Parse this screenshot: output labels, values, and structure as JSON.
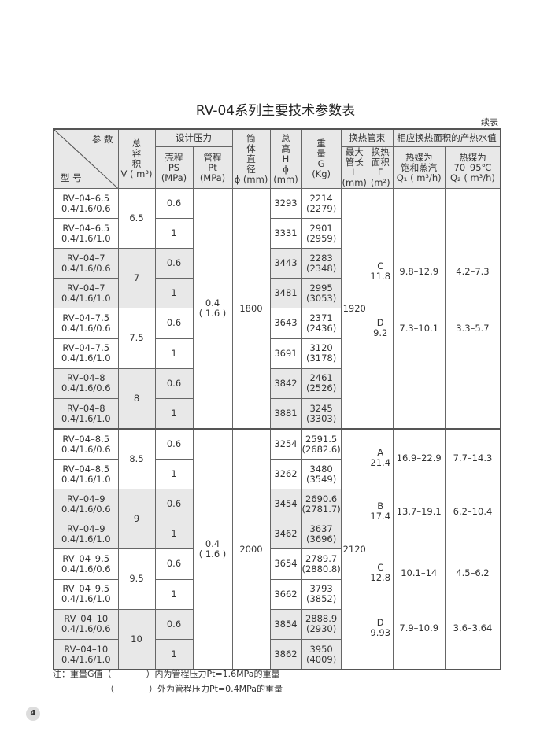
{
  "title": "RV-04系列主要技术参数表",
  "continued": "续表",
  "header": {
    "param": "参 数",
    "model": "型 号",
    "volume": [
      "总",
      "容",
      "积",
      "V ( m³)"
    ],
    "design_pressure": "设计压力",
    "ps": [
      "壳程",
      "PS",
      "(MPa)"
    ],
    "pt": [
      "管程",
      "Pt",
      "(MPa)"
    ],
    "diameter": [
      "筒",
      "体",
      "直",
      "径",
      "ϕ (mm)"
    ],
    "height": [
      "总",
      "高",
      "H",
      "ϕ (mm)"
    ],
    "weight": [
      "重",
      "量",
      "G",
      "(Kg)"
    ],
    "tube_bundle": "换热管束",
    "length": [
      "最大",
      "管长",
      "L",
      "(mm)"
    ],
    "area": [
      "换热",
      "面积",
      "F",
      "(m²)"
    ],
    "output": "相应换热面积的产热水值",
    "q1": [
      "热媒为",
      "饱和蒸汽",
      "Q₁ ( m³/h)"
    ],
    "q2": [
      "热媒为",
      "70–95℃",
      "Q₂ ( m³/h)"
    ]
  },
  "groups": [
    {
      "pt": [
        "0.4",
        "( 1.6 )"
      ],
      "diameter": "1800",
      "length": "1920",
      "bundles": [
        {
          "f": [
            "C",
            "11.8"
          ],
          "q1": "9.8–12.9",
          "q2": "4.2–7.3"
        },
        {
          "f": [
            "D",
            "9.2"
          ],
          "q1": "7.3–10.1",
          "q2": "3.3–5.7"
        }
      ],
      "volumes": [
        {
          "v": "6.5",
          "rows": [
            {
              "model": [
                "RV–04–6.5",
                "0.4/1.6/0.6"
              ],
              "ps": "0.6",
              "h": "3293",
              "g": [
                "2214",
                "(2279)"
              ]
            },
            {
              "model": [
                "RV–04–6.5",
                "0.4/1.6/1.0"
              ],
              "ps": "1",
              "h": "3331",
              "g": [
                "2901",
                "(2959)"
              ]
            }
          ]
        },
        {
          "v": "7",
          "rows": [
            {
              "model": [
                "RV–04–7",
                "0.4/1.6/0.6"
              ],
              "ps": "0.6",
              "h": "3443",
              "g": [
                "2283",
                "(2348)"
              ]
            },
            {
              "model": [
                "RV–04–7",
                "0.4/1.6/1.0"
              ],
              "ps": "1",
              "h": "3481",
              "g": [
                "2995",
                "(3053)"
              ]
            }
          ]
        },
        {
          "v": "7.5",
          "rows": [
            {
              "model": [
                "RV–04–7.5",
                "0.4/1.6/0.6"
              ],
              "ps": "0.6",
              "h": "3643",
              "g": [
                "2371",
                "(2436)"
              ]
            },
            {
              "model": [
                "RV–04–7.5",
                "0.4/1.6/1.0"
              ],
              "ps": "1",
              "h": "3691",
              "g": [
                "3120",
                "(3178)"
              ]
            }
          ]
        },
        {
          "v": "8",
          "rows": [
            {
              "model": [
                "RV–04–8",
                "0.4/1.6/0.6"
              ],
              "ps": "0.6",
              "h": "3842",
              "g": [
                "2461",
                "(2526)"
              ]
            },
            {
              "model": [
                "RV–04–8",
                "0.4/1.6/1.0"
              ],
              "ps": "1",
              "h": "3881",
              "g": [
                "3245",
                "(3303)"
              ]
            }
          ]
        }
      ]
    },
    {
      "pt": [
        "0.4",
        "( 1.6 )"
      ],
      "diameter": "2000",
      "length": "2120",
      "bundles": [
        {
          "f": [
            "A",
            "21.4"
          ],
          "q1": "16.9–22.9",
          "q2": "7.7–14.3"
        },
        {
          "f": [
            "B",
            "17.4"
          ],
          "q1": "13.7–19.1",
          "q2": "6.2–10.4"
        },
        {
          "f": [
            "C",
            "12.8"
          ],
          "q1": "10.1–14",
          "q2": "4.5–6.2"
        },
        {
          "f": [
            "D",
            "9.93"
          ],
          "q1": "7.9–10.9",
          "q2": "3.6–3.64"
        }
      ],
      "volumes": [
        {
          "v": "8.5",
          "rows": [
            {
              "model": [
                "RV–04–8.5",
                "0.4/1.6/0.6"
              ],
              "ps": "0.6",
              "h": "3254",
              "g": [
                "2591.5",
                "(2682.6)"
              ]
            },
            {
              "model": [
                "RV–04–8.5",
                "0.4/1.6/1.0"
              ],
              "ps": "1",
              "h": "3262",
              "g": [
                "3480",
                "(3549)"
              ]
            }
          ]
        },
        {
          "v": "9",
          "rows": [
            {
              "model": [
                "RV–04–9",
                "0.4/1.6/0.6"
              ],
              "ps": "0.6",
              "h": "3454",
              "g": [
                "2690.6",
                "(2781.7)"
              ]
            },
            {
              "model": [
                "RV–04–9",
                "0.4/1.6/1.0"
              ],
              "ps": "1",
              "h": "3462",
              "g": [
                "3637",
                "(3696)"
              ]
            }
          ]
        },
        {
          "v": "9.5",
          "rows": [
            {
              "model": [
                "RV–04–9.5",
                "0.4/1.6/0.6"
              ],
              "ps": "0.6",
              "h": "3654",
              "g": [
                "2789.7",
                "(2880.8)"
              ]
            },
            {
              "model": [
                "RV–04–9.5",
                "0.4/1.6/1.0"
              ],
              "ps": "1",
              "h": "3662",
              "g": [
                "3793",
                "(3852)"
              ]
            }
          ]
        },
        {
          "v": "10",
          "rows": [
            {
              "model": [
                "RV–04–10",
                "0.4/1.6/0.6"
              ],
              "ps": "0.6",
              "h": "3854",
              "g": [
                "2888.9",
                "(2930)"
              ]
            },
            {
              "model": [
                "RV–04–10",
                "0.4/1.6/1.0"
              ],
              "ps": "1",
              "h": "3862",
              "g": [
                "3950",
                "(4009)"
              ]
            }
          ]
        }
      ]
    }
  ],
  "notes": [
    "注：重量G值（　　　　）内为管程压力Pt=1.6MPa的重量",
    "（　　　　）外为管程压力Pt=0.4MPa的重量"
  ],
  "page_number": "4",
  "colors": {
    "shade": "#e8e8e8",
    "border": "#555555"
  }
}
